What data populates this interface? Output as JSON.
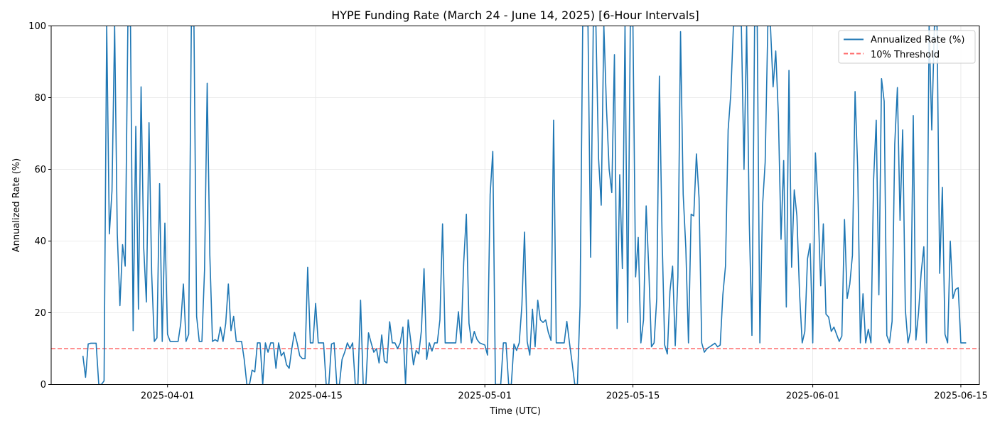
{
  "chart_data": {
    "type": "line",
    "title": "HYPE Funding Rate (March 24 - June 14, 2025) [6-Hour Intervals]",
    "xlabel": "Time (UTC)",
    "ylabel": "Annualized Rate (%)",
    "xlim": [
      "2025-03-21T00:00",
      "2025-06-16T18:00"
    ],
    "ylim": [
      0,
      100
    ],
    "y_ticks": [
      0,
      20,
      40,
      60,
      80,
      100
    ],
    "x_ticks": [
      {
        "date": "2025-04-01",
        "label": "2025-04-01"
      },
      {
        "date": "2025-04-15",
        "label": "2025-04-15"
      },
      {
        "date": "2025-05-01",
        "label": "2025-05-01"
      },
      {
        "date": "2025-05-15",
        "label": "2025-05-15"
      },
      {
        "date": "2025-06-01",
        "label": "2025-06-01"
      },
      {
        "date": "2025-06-15",
        "label": "2025-06-15"
      }
    ],
    "grid": true,
    "legend_position": "top-right",
    "threshold": {
      "name": "10% Threshold",
      "value": 10,
      "color": "#ff6b6b",
      "style": "dashed"
    },
    "series": [
      {
        "name": "Annualized Rate (%)",
        "color": "#1f77b4",
        "start": "2025-03-24T00:00",
        "interval_hours": 6,
        "values": [
          8,
          2,
          11.3,
          11.5,
          11.5,
          11.5,
          0,
          0,
          1,
          100,
          42,
          54,
          100,
          42,
          22,
          39,
          33,
          100,
          100,
          15,
          72,
          21,
          83,
          38,
          23,
          73,
          31,
          12,
          13,
          56,
          12,
          45,
          14,
          12,
          12,
          12,
          12,
          17,
          28,
          12,
          14,
          100,
          100,
          19,
          12,
          12,
          32,
          84,
          36,
          12,
          12.5,
          12,
          16,
          12,
          17,
          28,
          15,
          19,
          12,
          12,
          12,
          7,
          0,
          0,
          4,
          3.5,
          11.6,
          11.6,
          0,
          11.6,
          9,
          11.6,
          11.6,
          4.5,
          11.6,
          8,
          9,
          5.5,
          4.5,
          10,
          14.5,
          11.6,
          8,
          7.2,
          7.2,
          32.7,
          11.6,
          11.6,
          22.6,
          11.6,
          11.6,
          11.6,
          0,
          0,
          11.3,
          11.6,
          0,
          0,
          7,
          9,
          11.6,
          10,
          11.6,
          0,
          0,
          23.5,
          0,
          0,
          14.4,
          11.6,
          9,
          10,
          6,
          13.8,
          6.5,
          6,
          17.5,
          11.6,
          11.6,
          10,
          11.6,
          16,
          0,
          18,
          12,
          5.5,
          9.5,
          8.5,
          15,
          32.3,
          7,
          11.6,
          9.3,
          11.6,
          11.6,
          18,
          44.8,
          11.6,
          11.6,
          11.6,
          11.6,
          11.6,
          20.3,
          11.6,
          34,
          47.5,
          17,
          11.6,
          14.8,
          12.6,
          11.6,
          11.3,
          11,
          8.2,
          53,
          65,
          0,
          0,
          0,
          11.6,
          11.6,
          0,
          0,
          11.3,
          9.5,
          11.6,
          22,
          42.5,
          12,
          8.2,
          21,
          10.5,
          23.5,
          18,
          17.3,
          18,
          14.5,
          12.3,
          73.7,
          11.6,
          11.6,
          11.6,
          11.6,
          17.6,
          11.6,
          6,
          0,
          0,
          22,
          100,
          100,
          100,
          35.5,
          100,
          100,
          63,
          50,
          100,
          77,
          60,
          53.5,
          92,
          15.6,
          58.5,
          32.3,
          100,
          17.3,
          100,
          100,
          30,
          41,
          11.6,
          18,
          49.8,
          32,
          10.5,
          11.6,
          24,
          86,
          42,
          11,
          8.5,
          26,
          33,
          10.8,
          30,
          98.4,
          53,
          38,
          11.6,
          47.5,
          47,
          64.3,
          52,
          11.6,
          9,
          10,
          10.5,
          11,
          11.5,
          10.5,
          11,
          25,
          33,
          71,
          81,
          100,
          100,
          100,
          100,
          60,
          100,
          45,
          13.7,
          100,
          100,
          11.6,
          49.7,
          62,
          100,
          100,
          83,
          93,
          75,
          40.5,
          62.5,
          21.6,
          87.6,
          32.7,
          54.3,
          47,
          25.5,
          11.6,
          14.8,
          35,
          39.3,
          11.6,
          64.6,
          50,
          27.5,
          44.8,
          19.6,
          18.8,
          14.8,
          16,
          14,
          12,
          13.5,
          46,
          24,
          28,
          36,
          81.7,
          60,
          11.6,
          25.3,
          11.6,
          15.4,
          11.6,
          57,
          73.7,
          25,
          85.3,
          79,
          13.7,
          11.6,
          17.6,
          67,
          82.8,
          45.8,
          71,
          21,
          11.6,
          15,
          75,
          12.4,
          20,
          31.2,
          38.4,
          11.6,
          100,
          71,
          100,
          100,
          31,
          55,
          14,
          11.6,
          40,
          24,
          26.5,
          27,
          11.6,
          11.6,
          11.6
        ]
      }
    ]
  }
}
